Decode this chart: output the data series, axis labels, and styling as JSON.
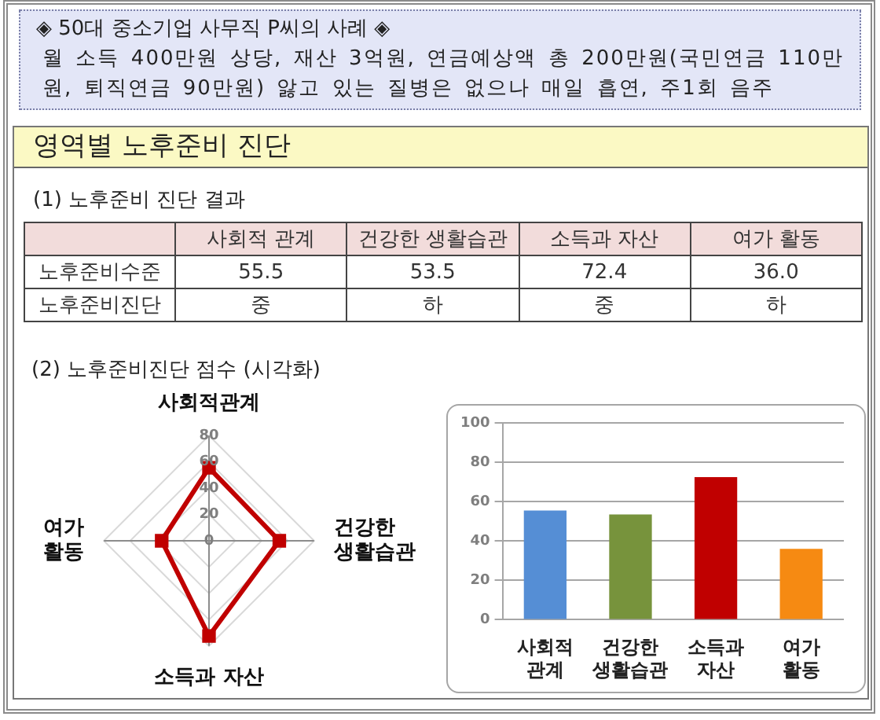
{
  "chart_data": [
    {
      "type": "other",
      "title": "◈ 50대 중소기업 사무직 P씨의 사례 ◈",
      "subtitle": "월 소득 400만원 상당, 재산 3억원, 연금예상액 총 200만원(국민연금 110만원, 퇴직연금 90만원) 앓고 있는 질병은 없으나 매일 흡연, 주1회 음주"
    },
    {
      "type": "heatmap",
      "title": "영역별 노후준비 진단",
      "subtitle": "(1) 노후준비 진단 결과",
      "categories": [
        "사회적 관계",
        "건강한 생활습관",
        "소득과 자산",
        "여가 활동"
      ],
      "y_categories": [
        "노후준비수준",
        "노후준비진단"
      ],
      "cells": [
        [
          55.5,
          53.5,
          72.4,
          36.0
        ],
        [
          null,
          null,
          null,
          null
        ]
      ],
      "cell_labels": [
        [
          "55.5",
          "53.5",
          "72.4",
          "36.0"
        ],
        [
          "중",
          "하",
          "중",
          "하"
        ]
      ]
    },
    {
      "type": "radar",
      "title": "(2) 노후준비진단 점수 (시각화)",
      "categories": [
        "사회적관계",
        "건강한\n생활습관",
        "소득과 자산",
        "여가\n활동"
      ],
      "series": [
        {
          "color": "#c00000",
          "values": [
            55.5,
            53.5,
            72.4,
            36.0
          ]
        }
      ],
      "ylim": [
        0,
        80
      ],
      "yticks": [
        0,
        20,
        40,
        60,
        80
      ],
      "grid": true,
      "marker": "square"
    },
    {
      "type": "bar",
      "categories": [
        "사회적\n관계",
        "건강한\n생활습관",
        "소득과\n자산",
        "여가\n활동"
      ],
      "values": [
        55.5,
        53.5,
        72.4,
        36.0
      ],
      "colors": [
        "#558ed5",
        "#77933c",
        "#c00000",
        "#f68a12"
      ],
      "ylim": [
        0,
        100
      ],
      "yticks": [
        0,
        20,
        40,
        60,
        80,
        100
      ],
      "grid": "y"
    }
  ]
}
